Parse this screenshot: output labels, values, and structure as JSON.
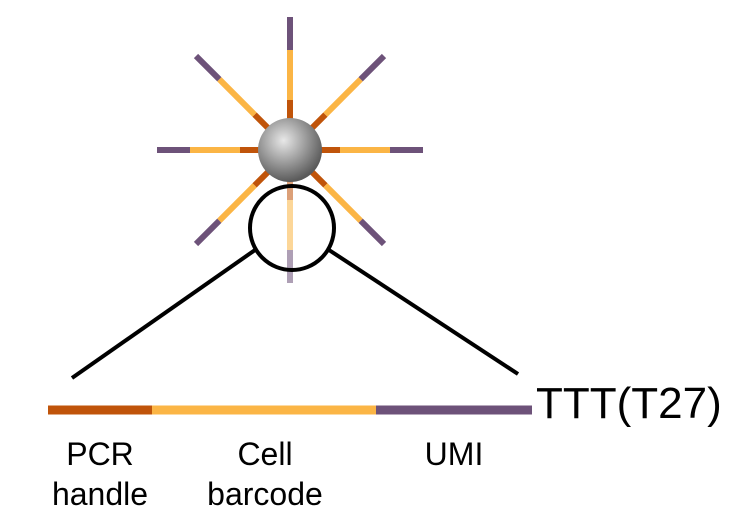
{
  "colors": {
    "pcr_handle": "#c0540a",
    "cell_barcode": "#fbb545",
    "umi": "#6d5279",
    "bead_light": "#e8e8e8",
    "bead_dark": "#5a5a5a",
    "lines": "#000000",
    "background": "#ffffff"
  },
  "bead": {
    "icon": "bead-sphere",
    "strand_count": 8,
    "segments_order": [
      "pcr_handle",
      "cell_barcode",
      "umi"
    ]
  },
  "oligo": {
    "segments": [
      {
        "key": "pcr_handle",
        "label_line1": "PCR",
        "label_line2": "handle"
      },
      {
        "key": "cell_barcode",
        "label_line1": "Cell",
        "label_line2": "barcode"
      },
      {
        "key": "umi",
        "label_line1": "UMI",
        "label_line2": ""
      }
    ],
    "tail_label": "TTT(T27)"
  }
}
